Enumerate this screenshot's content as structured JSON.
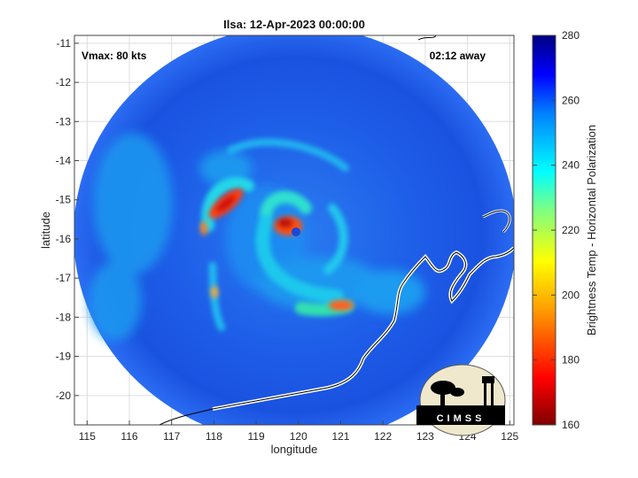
{
  "chart_data": {
    "type": "heatmap",
    "title": "Ilsa: 12-Apr-2023 00:00:00",
    "xlabel": "longitude",
    "ylabel": "latitude",
    "xlim": [
      114.7,
      125.1
    ],
    "ylim": [
      -20.75,
      -10.8
    ],
    "xticks": [
      "115",
      "116",
      "117",
      "118",
      "119",
      "120",
      "121",
      "122",
      "123",
      "124",
      "125"
    ],
    "yticks": [
      "-11",
      "-12",
      "-13",
      "-14",
      "-15",
      "-16",
      "-17",
      "-18",
      "-19",
      "-20"
    ],
    "grid": true,
    "annotations": {
      "top_left": "Vmax: 80 kts",
      "top_right": "02:12 away"
    },
    "colorbar": {
      "label": "Brightness Temp - Horizontal Polarization",
      "range": [
        160,
        280
      ],
      "ticks": [
        "160",
        "180",
        "200",
        "220",
        "240",
        "260",
        "280"
      ],
      "colormap": "jet"
    },
    "storm_center": {
      "lon": 119.8,
      "lat": -15.9
    },
    "logo": "CIMSS"
  }
}
